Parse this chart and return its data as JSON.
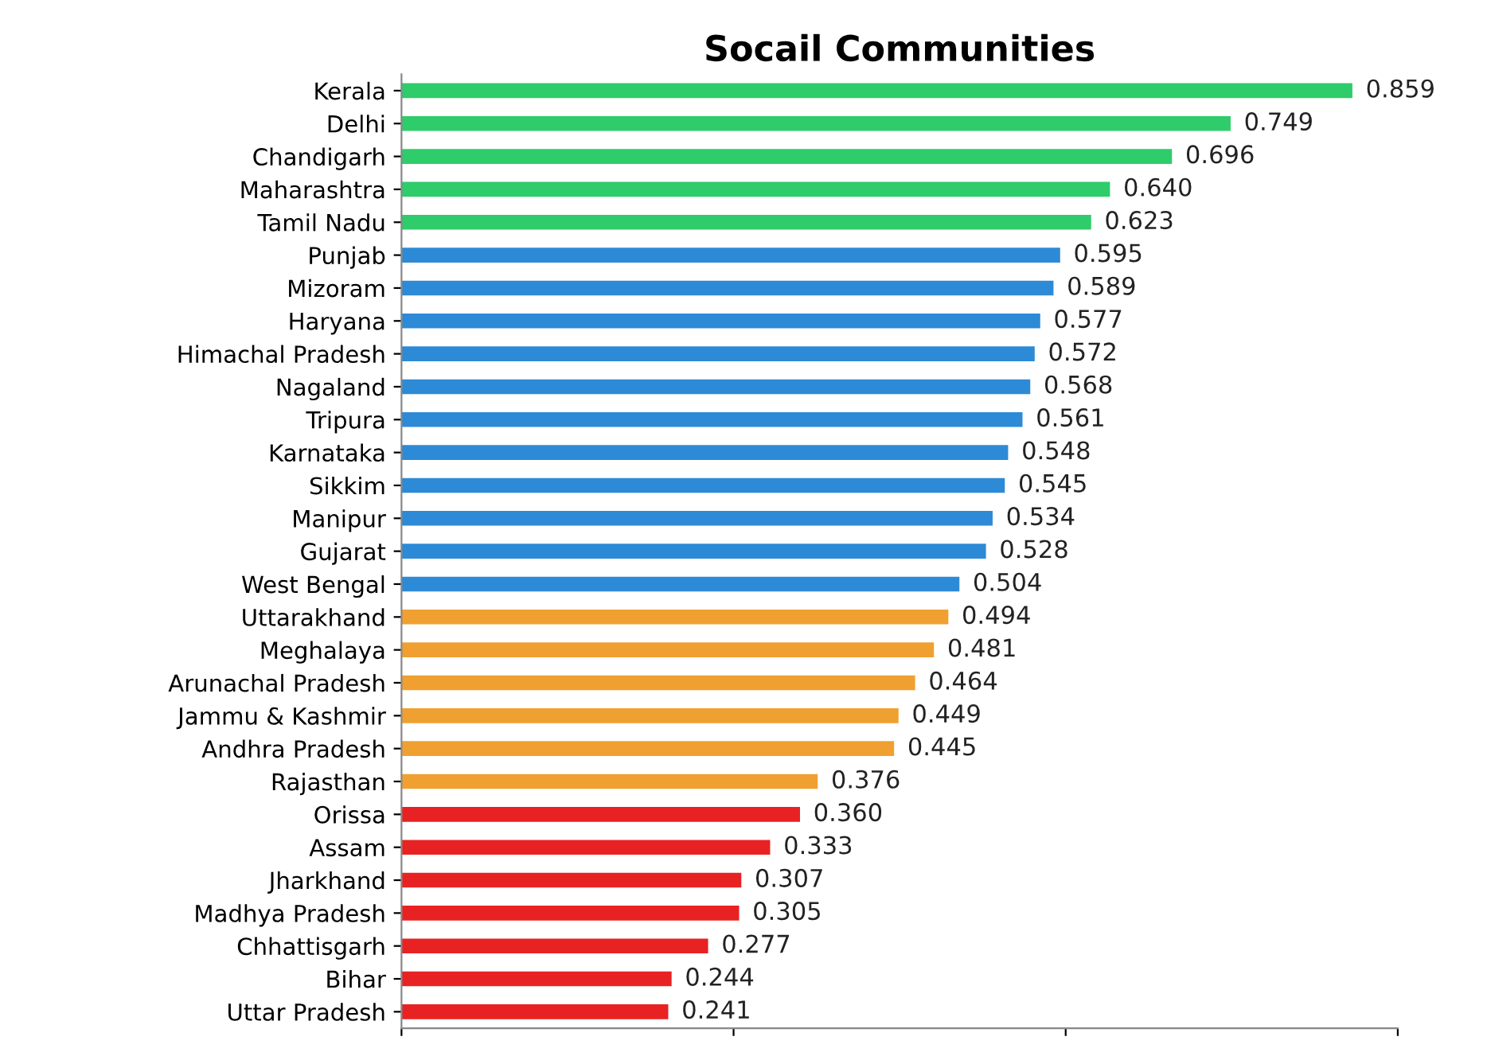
{
  "chart_data": {
    "type": "bar",
    "orientation": "horizontal",
    "title": "Socail Communities",
    "categories": [
      "Kerala",
      "Delhi",
      "Chandigarh",
      "Maharashtra",
      "Tamil Nadu",
      "Punjab",
      "Mizoram",
      "Haryana",
      "Himachal Pradesh",
      "Nagaland",
      "Tripura",
      "Karnataka",
      "Sikkim",
      "Manipur",
      "Gujarat",
      "West Bengal",
      "Uttarakhand",
      "Meghalaya",
      "Arunachal Pradesh",
      "Jammu & Kashmir",
      "Andhra Pradesh",
      "Rajasthan",
      "Orissa",
      "Assam",
      "Jharkhand",
      "Madhya Pradesh",
      "Chhattisgarh",
      "Bihar",
      "Uttar Pradesh"
    ],
    "values": [
      0.859,
      0.749,
      0.696,
      0.64,
      0.623,
      0.595,
      0.589,
      0.577,
      0.572,
      0.568,
      0.561,
      0.548,
      0.545,
      0.534,
      0.528,
      0.504,
      0.494,
      0.481,
      0.464,
      0.449,
      0.445,
      0.376,
      0.36,
      0.333,
      0.307,
      0.305,
      0.277,
      0.244,
      0.241
    ],
    "value_labels": [
      "0.859",
      "0.749",
      "0.696",
      "0.640",
      "0.623",
      "0.595",
      "0.589",
      "0.577",
      "0.572",
      "0.568",
      "0.561",
      "0.548",
      "0.545",
      "0.534",
      "0.528",
      "0.504",
      "0.494",
      "0.481",
      "0.464",
      "0.449",
      "0.445",
      "0.376",
      "0.360",
      "0.333",
      "0.307",
      "0.305",
      "0.277",
      "0.244",
      "0.241"
    ],
    "colors": [
      "#2ecc6a",
      "#2ecc6a",
      "#2ecc6a",
      "#2ecc6a",
      "#2ecc6a",
      "#2d8ad6",
      "#2d8ad6",
      "#2d8ad6",
      "#2d8ad6",
      "#2d8ad6",
      "#2d8ad6",
      "#2d8ad6",
      "#2d8ad6",
      "#2d8ad6",
      "#2d8ad6",
      "#2d8ad6",
      "#f0a030",
      "#f0a030",
      "#f0a030",
      "#f0a030",
      "#f0a030",
      "#f0a030",
      "#e82222",
      "#e82222",
      "#e82222",
      "#e82222",
      "#e82222",
      "#e82222",
      "#e82222"
    ],
    "xlim": [
      0,
      0.9
    ],
    "xticks": [
      {
        "value": 0,
        "label": null
      },
      {
        "value": 0.3,
        "label": null
      },
      {
        "value": 0.6,
        "label": null
      },
      {
        "value": 0.9,
        "label": null
      }
    ],
    "tick_labels": "y",
    "grid": false,
    "legend": false
  }
}
